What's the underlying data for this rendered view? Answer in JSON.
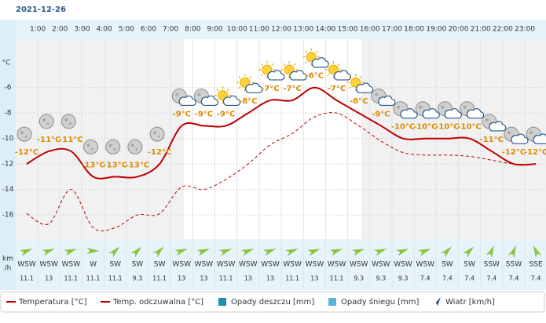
{
  "chart_data": {
    "type": "line",
    "title": "2021-12-26",
    "x_labels": [
      "1:00",
      "2:00",
      "3:00",
      "4:00",
      "5:00",
      "6:00",
      "7:00",
      "8:00",
      "9:00",
      "10:00",
      "11:00",
      "12:00",
      "13:00",
      "14:00",
      "15:00",
      "16:00",
      "17:00",
      "18:00",
      "19:00",
      "20:00",
      "21:00",
      "22:00",
      "23:00"
    ],
    "y_unit": "°C",
    "ylim": [
      -17.9,
      -2.2
    ],
    "yticks": [
      -6,
      -8,
      -10,
      -12,
      -14,
      -16
    ],
    "grid": true,
    "series": [
      {
        "name": "Temperatura [°C]",
        "color": "#c00000",
        "dash": false,
        "values": [
          -12,
          -11,
          -11,
          -13,
          -13,
          -13,
          -12,
          -9,
          -9,
          -9,
          -8,
          -7,
          -7,
          -6,
          -7,
          -8,
          -9,
          -10,
          -10,
          -10,
          -10,
          -11,
          -12,
          -12
        ],
        "value_labels": [
          "-12°C",
          "-11°C",
          "-11°C",
          "-13°C",
          "-13°C",
          "-13°C",
          "-12°C",
          "-9°C",
          "-9°C",
          "-9°C",
          "-8°C",
          "-7°C",
          "-7°C",
          "-6°C",
          "-7°C",
          "-8°C",
          "-9°C",
          "-10°C",
          "-10°C",
          "-10°C",
          "-10°C",
          "-11°C",
          "-12°C",
          "-12°C"
        ]
      },
      {
        "name": "Temp. odczuwalna [°C]",
        "color": "#c00000",
        "dash": true,
        "values": [
          -15.9,
          -16.7,
          -14,
          -17,
          -17,
          -16,
          -15.9,
          -13.8,
          -14,
          -13.2,
          -12,
          -10.5,
          -9.6,
          -8.3,
          -8,
          -9,
          -10.2,
          -11.1,
          -11.3,
          -11.3,
          -11.4,
          -11.7,
          -12,
          -12
        ]
      }
    ],
    "legend_extra": [
      {
        "name": "Opady deszczu [mm]",
        "color": "#1a8fb0"
      },
      {
        "name": "Opady śniegu [mm]",
        "color": "#5ab4dc"
      },
      {
        "name": "Wiatr [km/h]",
        "color": "#2a4a7a"
      }
    ],
    "wind": {
      "unit_lines": [
        "km",
        "/h"
      ],
      "directions": [
        "WSW",
        "WSW",
        "WSW",
        "W",
        "SW",
        "SW",
        "SW",
        "WSW",
        "WSW",
        "WSW",
        "WSW",
        "WSW",
        "WSW",
        "WSW",
        "WSW",
        "WSW",
        "WSW",
        "WSW",
        "WSW",
        "SW",
        "SW",
        "SSW",
        "SSW",
        "SSE"
      ],
      "speeds": [
        11.1,
        13,
        11.1,
        11.1,
        11.1,
        9.3,
        11.1,
        13,
        13,
        11.1,
        13,
        13,
        11.1,
        13,
        11.1,
        9.3,
        9.3,
        9.3,
        7.4,
        7.4,
        7.4,
        7.4,
        7.4,
        7.4
      ]
    }
  }
}
